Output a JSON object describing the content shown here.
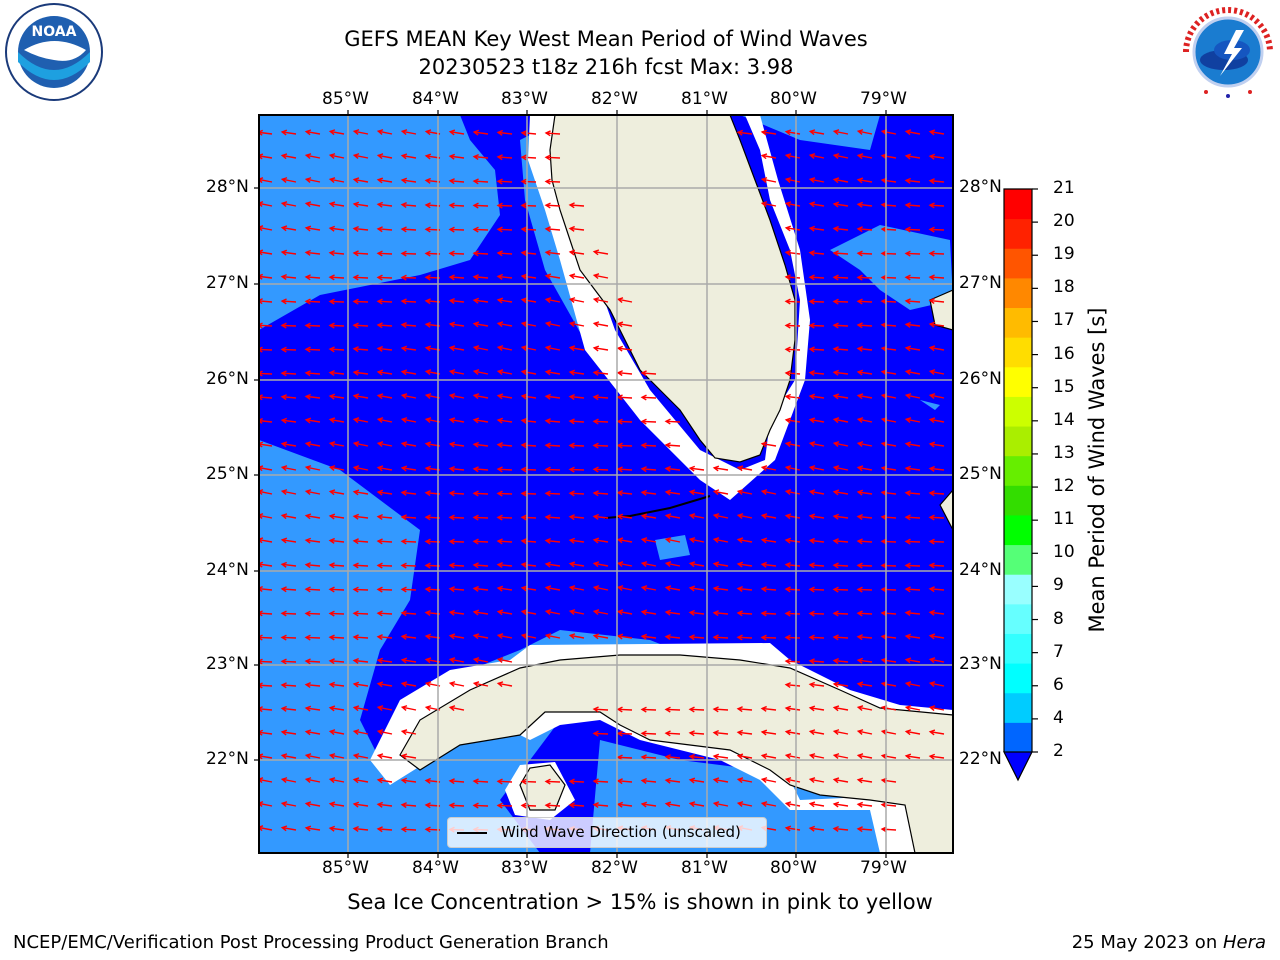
{
  "title": {
    "line1": "GEFS MEAN Key West Mean Period of Wind Waves",
    "line2": "20230523 t18z 216h fcst   Max: 3.98"
  },
  "map": {
    "lon_labels": [
      "85°W",
      "84°W",
      "83°W",
      "82°W",
      "81°W",
      "80°W",
      "79°W"
    ],
    "lat_labels": [
      "28°N",
      "27°N",
      "26°N",
      "25°N",
      "24°N",
      "23°N",
      "22°N"
    ],
    "ocean_colors": {
      "deep": "#0000ff",
      "shelf": "#3399ff",
      "land": "#eeeedd",
      "coast_band": "#ffffff"
    },
    "arrow_color": "#ff0000"
  },
  "colorbar": {
    "label": "Mean Period of Wind Waves [s]",
    "tick_labels": [
      "2",
      "4",
      "6",
      "7",
      "8",
      "9",
      "10",
      "11",
      "12",
      "13",
      "14",
      "15",
      "16",
      "17",
      "18",
      "19",
      "20",
      "21"
    ],
    "colors": [
      "#0066ff",
      "#00ccff",
      "#00ffff",
      "#33ffff",
      "#66ffff",
      "#99ffff",
      "#55ff77",
      "#00ff00",
      "#33dd00",
      "#66ee00",
      "#aaee00",
      "#ccff00",
      "#ffff00",
      "#ffdd00",
      "#ffbb00",
      "#ff8800",
      "#ff5500",
      "#ff2200",
      "#ff0000"
    ]
  },
  "legend": {
    "label": "Wind Wave Direction (unscaled)"
  },
  "caption": "Sea Ice Concentration > 15% is shown in pink to yellow",
  "footer": {
    "left": "NCEP/EMC/Verification Post Processing Product Generation Branch",
    "right_prefix": "25 May 2023 on ",
    "right_host": "Hera"
  },
  "logos": {
    "noaa_text": "NOAA"
  }
}
